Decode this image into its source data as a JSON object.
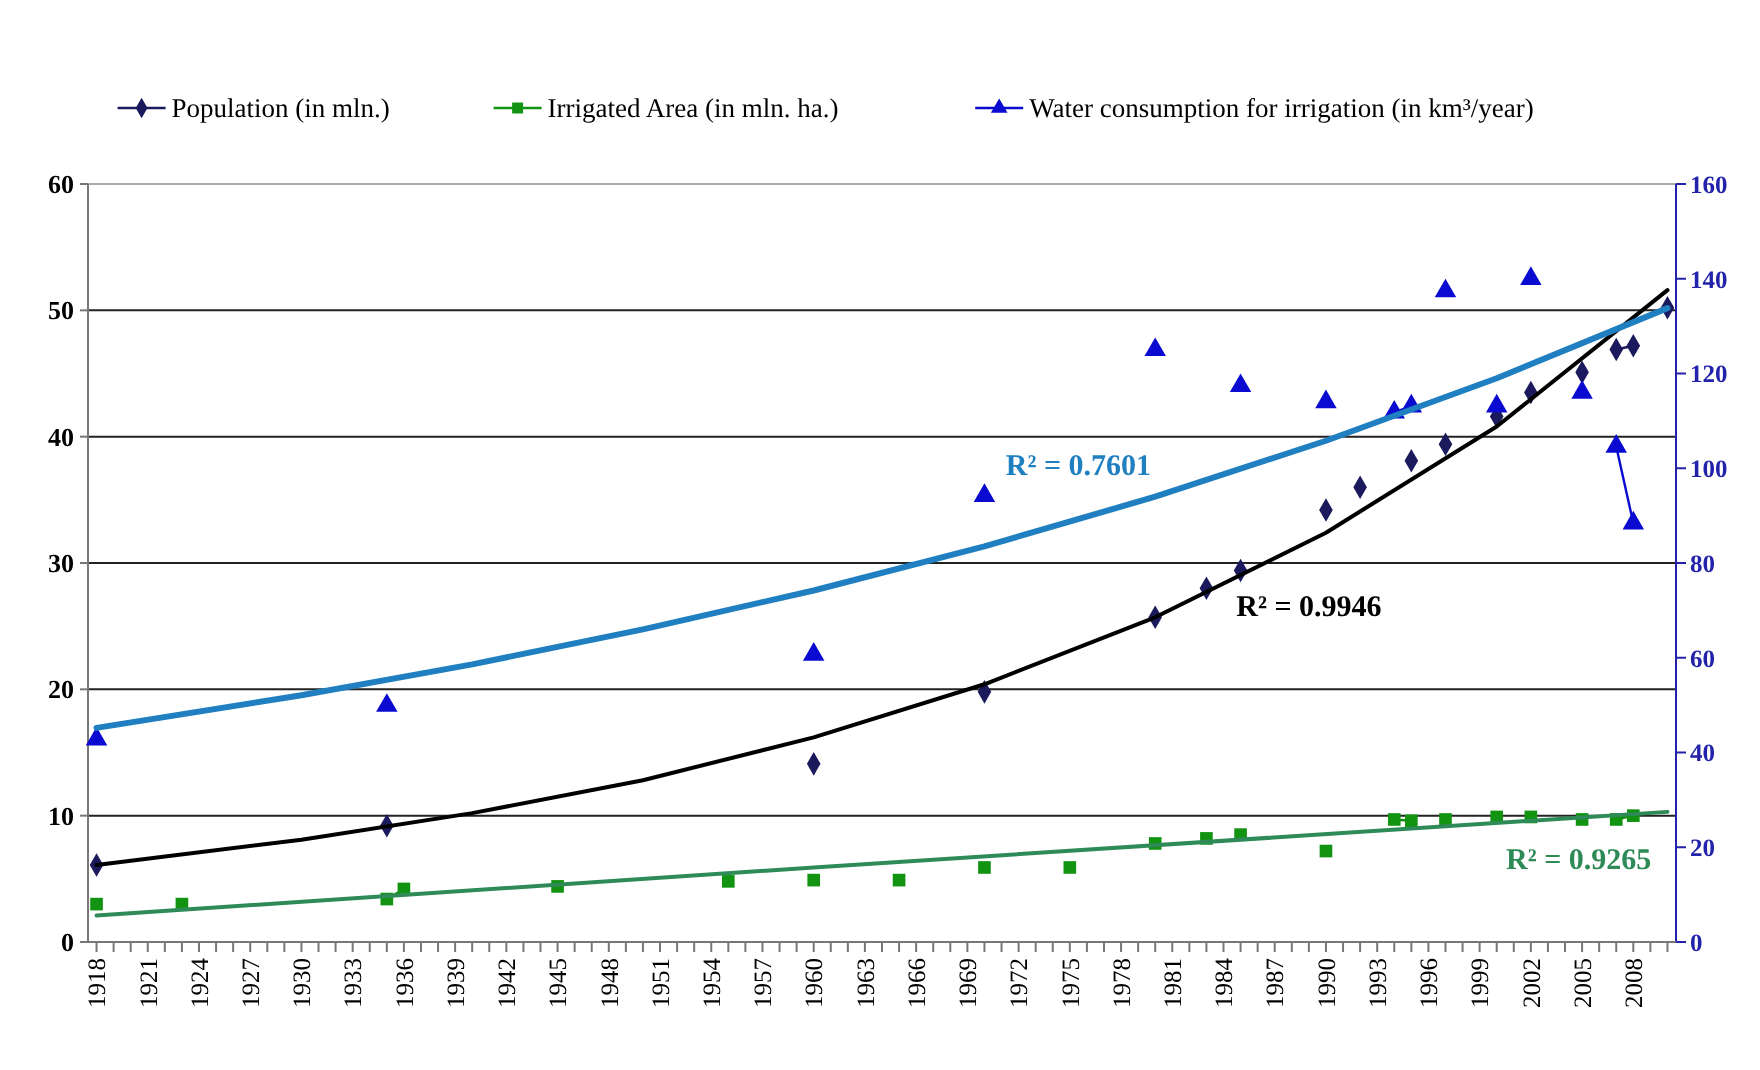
{
  "chart_data": {
    "type": "line",
    "legend": "top",
    "grid": "y",
    "line_style": "solid",
    "xlim": [
      1917.5,
      2010.5
    ],
    "xticks": [
      1918,
      {
        "value": 1919,
        "label": null
      },
      {
        "value": 1920,
        "label": null
      },
      1921,
      {
        "value": 1922,
        "label": null
      },
      {
        "value": 1923,
        "label": null
      },
      1924,
      {
        "value": 1925,
        "label": null
      },
      {
        "value": 1926,
        "label": null
      },
      1927,
      {
        "value": 1928,
        "label": null
      },
      {
        "value": 1929,
        "label": null
      },
      1930,
      {
        "value": 1931,
        "label": null
      },
      {
        "value": 1932,
        "label": null
      },
      1933,
      {
        "value": 1934,
        "label": null
      },
      {
        "value": 1935,
        "label": null
      },
      1936,
      {
        "value": 1937,
        "label": null
      },
      {
        "value": 1938,
        "label": null
      },
      1939,
      {
        "value": 1940,
        "label": null
      },
      {
        "value": 1941,
        "label": null
      },
      1942,
      {
        "value": 1943,
        "label": null
      },
      {
        "value": 1944,
        "label": null
      },
      1945,
      {
        "value": 1946,
        "label": null
      },
      {
        "value": 1947,
        "label": null
      },
      1948,
      {
        "value": 1949,
        "label": null
      },
      {
        "value": 1950,
        "label": null
      },
      1951,
      {
        "value": 1952,
        "label": null
      },
      {
        "value": 1953,
        "label": null
      },
      1954,
      {
        "value": 1955,
        "label": null
      },
      {
        "value": 1956,
        "label": null
      },
      1957,
      {
        "value": 1958,
        "label": null
      },
      {
        "value": 1959,
        "label": null
      },
      1960,
      {
        "value": 1961,
        "label": null
      },
      {
        "value": 1962,
        "label": null
      },
      1963,
      {
        "value": 1964,
        "label": null
      },
      {
        "value": 1965,
        "label": null
      },
      1966,
      {
        "value": 1967,
        "label": null
      },
      {
        "value": 1968,
        "label": null
      },
      1969,
      {
        "value": 1970,
        "label": null
      },
      {
        "value": 1971,
        "label": null
      },
      1972,
      {
        "value": 1973,
        "label": null
      },
      {
        "value": 1974,
        "label": null
      },
      1975,
      {
        "value": 1976,
        "label": null
      },
      {
        "value": 1977,
        "label": null
      },
      1978,
      {
        "value": 1979,
        "label": null
      },
      {
        "value": 1980,
        "label": null
      },
      1981,
      {
        "value": 1982,
        "label": null
      },
      {
        "value": 1983,
        "label": null
      },
      1984,
      {
        "value": 1985,
        "label": null
      },
      {
        "value": 1986,
        "label": null
      },
      1987,
      {
        "value": 1988,
        "label": null
      },
      {
        "value": 1989,
        "label": null
      },
      1990,
      {
        "value": 1991,
        "label": null
      },
      {
        "value": 1992,
        "label": null
      },
      1993,
      {
        "value": 1994,
        "label": null
      },
      {
        "value": 1995,
        "label": null
      },
      1996,
      {
        "value": 1997,
        "label": null
      },
      {
        "value": 1998,
        "label": null
      },
      1999,
      {
        "value": 2000,
        "label": null
      },
      {
        "value": 2001,
        "label": null
      },
      2002,
      {
        "value": 2003,
        "label": null
      },
      {
        "value": 2004,
        "label": null
      },
      2005,
      {
        "value": 2006,
        "label": null
      },
      {
        "value": 2007,
        "label": null
      },
      2008,
      {
        "value": 2009,
        "label": null
      },
      {
        "value": 2010,
        "label": null
      }
    ],
    "ylim": [
      0,
      60
    ],
    "yticks": [
      0,
      10,
      20,
      30,
      40,
      50,
      60
    ],
    "y2lim": [
      0,
      160
    ],
    "y2ticks": [
      0,
      20,
      40,
      60,
      80,
      100,
      120,
      140,
      160
    ],
    "annotations": [
      "R² = 0.7601",
      "R² = 0.9946",
      "R² = 0.9265"
    ],
    "series": [
      {
        "name": "Population (in mln.)",
        "color": "#1a1a5c",
        "marker": "diamond",
        "x": [
          1918,
          1919,
          1935,
          1936,
          1960,
          1961,
          1970,
          1971,
          1980,
          1981,
          1983,
          1984,
          1985,
          1986,
          1990,
          1991,
          1992,
          1993,
          1995,
          1996,
          1997,
          1998,
          2000,
          2001,
          2002,
          2003,
          2005,
          2006,
          2007,
          2008,
          2009,
          2010
        ],
        "values": [
          6.1,
          null,
          9.2,
          null,
          14.1,
          null,
          19.8,
          null,
          25.7,
          null,
          28.0,
          null,
          29.4,
          null,
          34.2,
          null,
          36.0,
          null,
          38.1,
          null,
          39.4,
          null,
          41.6,
          null,
          43.5,
          null,
          45.1,
          null,
          46.9,
          47.2,
          null,
          50.2
        ]
      },
      {
        "name": "Irrigated Area (in mln. ha.)",
        "color": "#129312",
        "marker": "square",
        "x": [
          1918,
          1919,
          1923,
          1924,
          1935,
          1936,
          1937,
          1945,
          1946,
          1955,
          1956,
          1960,
          1961,
          1965,
          1966,
          1970,
          1971,
          1975,
          1976,
          1980,
          1981,
          1983,
          1984,
          1985,
          1986,
          1990,
          1991,
          1994,
          1995,
          1996,
          1997,
          1998,
          2000,
          2001,
          2002,
          2003,
          2005,
          2006,
          2007,
          2008
        ],
        "values": [
          3.0,
          null,
          3.0,
          null,
          3.4,
          4.2,
          null,
          4.4,
          null,
          4.8,
          null,
          4.9,
          null,
          4.9,
          null,
          5.9,
          null,
          5.9,
          null,
          7.8,
          null,
          8.2,
          null,
          8.5,
          null,
          7.2,
          null,
          9.7,
          9.6,
          null,
          9.7,
          null,
          9.9,
          null,
          9.9,
          null,
          9.7,
          null,
          9.7,
          10.0
        ]
      },
      {
        "name": "Water consumption for irrigation (in km³/year)",
        "color": "#0a0ad0",
        "marker": "triangle",
        "axis": "y2",
        "x": [
          1918,
          1919,
          1935,
          1936,
          1960,
          1961,
          1970,
          1971,
          1980,
          1981,
          1985,
          1986,
          1990,
          1991,
          1994,
          1995,
          1996,
          1997,
          1998,
          2000,
          2001,
          2002,
          2003,
          2005,
          2006,
          2007,
          2008
        ],
        "values": [
          42.8,
          null,
          49.9,
          null,
          60.7,
          null,
          94.2,
          null,
          125.0,
          null,
          117.4,
          null,
          114.0,
          null,
          111.8,
          113.1,
          null,
          137.4,
          null,
          113.1,
          null,
          140.0,
          null,
          116.0,
          null,
          104.6,
          88.4
        ]
      },
      {
        "type": "line",
        "color": "#000000",
        "marker": "none",
        "x": [
          1918,
          1930,
          1940,
          1950,
          1960,
          1970,
          1980,
          1990,
          2000,
          2010
        ],
        "values": [
          6.1,
          8.1,
          10.2,
          12.8,
          16.2,
          20.4,
          25.7,
          32.4,
          40.8,
          51.6
        ]
      },
      {
        "type": "line",
        "color": "#2e8b57",
        "marker": "none",
        "x": [
          1918,
          1960,
          2010
        ],
        "values": [
          2.1,
          5.9,
          10.3
        ]
      },
      {
        "type": "line",
        "color": "#1f7fc0",
        "marker": "none",
        "axis": "y2",
        "x": [
          1918,
          1930,
          1940,
          1950,
          1960,
          1970,
          1980,
          1990,
          2000,
          2010
        ],
        "values": [
          45.2,
          52.1,
          58.6,
          66.0,
          74.2,
          83.5,
          94.0,
          105.8,
          119.0,
          133.8
        ]
      }
    ]
  }
}
